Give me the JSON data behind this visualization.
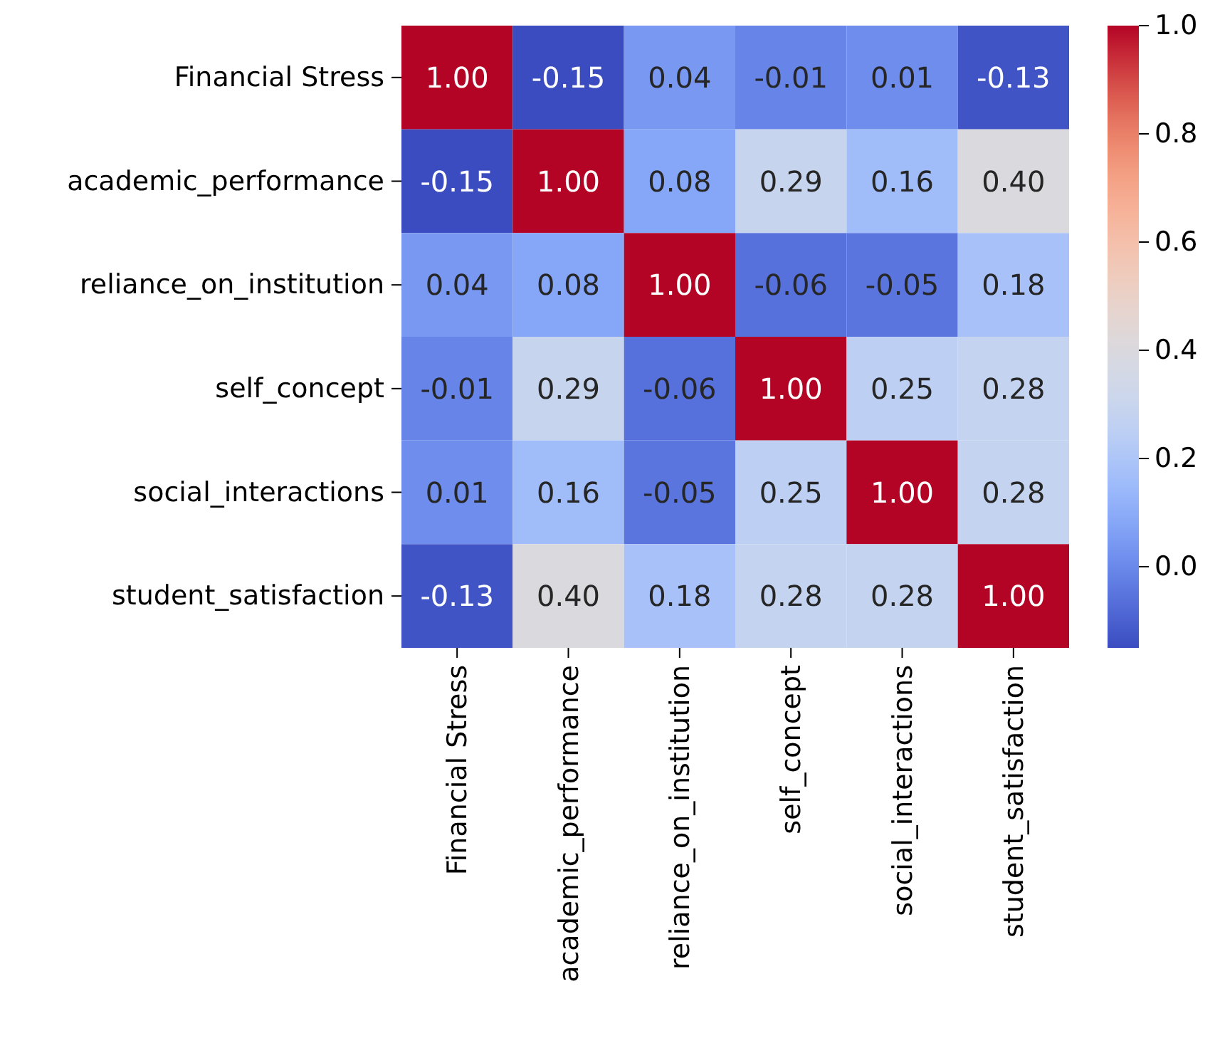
{
  "chart_data": {
    "type": "heatmap",
    "categories": [
      "Financial Stress",
      "academic_performance",
      "reliance_on_institution",
      "self_concept",
      "social_interactions",
      "student_satisfaction"
    ],
    "y_categories": [
      "Financial Stress",
      "academic_performance",
      "reliance_on_institution",
      "self_concept",
      "social_interactions",
      "student_satisfaction"
    ],
    "cells": [
      [
        1.0,
        -0.15,
        0.04,
        -0.01,
        0.01,
        -0.13
      ],
      [
        -0.15,
        1.0,
        0.08,
        0.29,
        0.16,
        0.4
      ],
      [
        0.04,
        0.08,
        1.0,
        -0.06,
        -0.05,
        0.18
      ],
      [
        -0.01,
        0.29,
        -0.06,
        1.0,
        0.25,
        0.28
      ],
      [
        0.01,
        0.16,
        -0.05,
        0.25,
        1.0,
        0.28
      ],
      [
        -0.13,
        0.4,
        0.18,
        0.28,
        0.28,
        1.0
      ]
    ],
    "cell_labels": [
      [
        "1.00",
        "-0.15",
        "0.04",
        "-0.01",
        "0.01",
        "-0.13"
      ],
      [
        "-0.15",
        "1.00",
        "0.08",
        "0.29",
        "0.16",
        "0.40"
      ],
      [
        "0.04",
        "0.08",
        "1.00",
        "-0.06",
        "-0.05",
        "0.18"
      ],
      [
        "-0.01",
        "0.29",
        "-0.06",
        "1.00",
        "0.25",
        "0.28"
      ],
      [
        "0.01",
        "0.16",
        "-0.05",
        "0.25",
        "1.00",
        "0.28"
      ],
      [
        "-0.13",
        "0.40",
        "0.18",
        "0.28",
        "0.28",
        "1.00"
      ]
    ],
    "clim": [
      -0.15,
      1.0
    ],
    "cticks": [
      {
        "value": 0,
        "label": "0.0"
      },
      {
        "value": 0.2,
        "label": "0.2"
      },
      {
        "value": 0.4,
        "label": "0.4"
      },
      {
        "value": 0.6,
        "label": "0.6"
      },
      {
        "value": 0.8,
        "label": "0.8"
      },
      {
        "value": 1,
        "label": "1.0"
      }
    ]
  }
}
